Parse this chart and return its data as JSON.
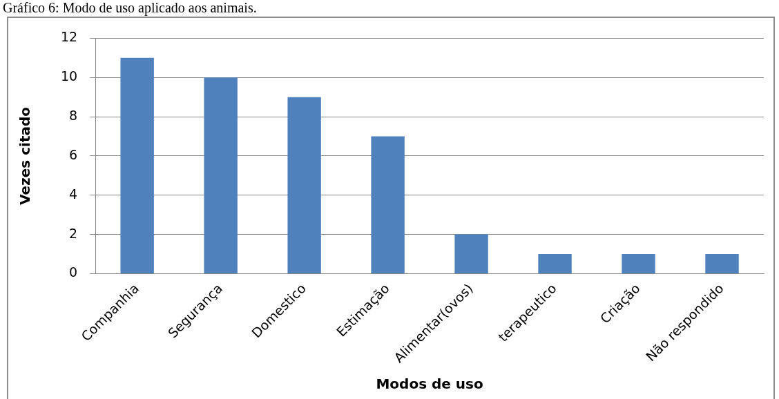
{
  "chart_data": {
    "type": "bar",
    "title": "Gráfico 6: Modo de uso aplicado aos animais.",
    "xlabel": "Modos de uso",
    "ylabel": "Vezes citado",
    "categories": [
      "Companhia",
      "Segurança",
      "Domestico",
      "Estimação",
      "Alimentar(ovos)",
      "terapeutico",
      "Criação",
      "Não respondido"
    ],
    "values": [
      11,
      10,
      9,
      7,
      2,
      1,
      1,
      1
    ],
    "color": "#4f81bd",
    "ylim": [
      0,
      12
    ],
    "yticks": [
      0,
      2,
      4,
      6,
      8,
      10,
      12
    ],
    "grid": "y",
    "legend": false
  }
}
